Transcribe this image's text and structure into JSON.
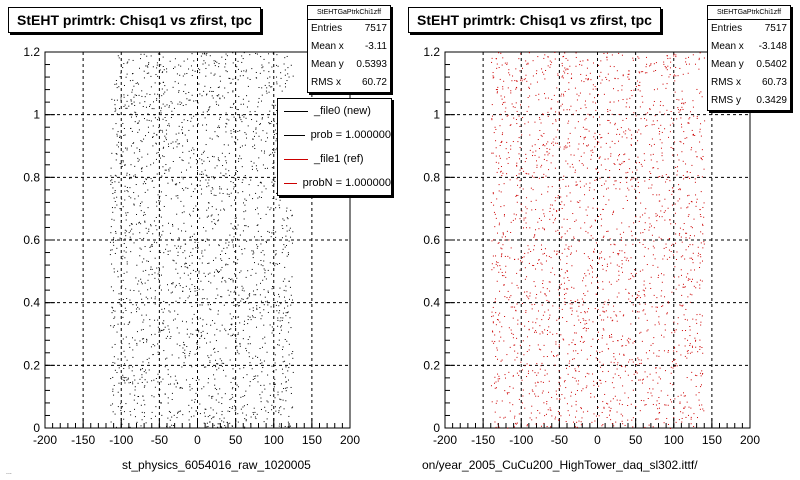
{
  "chart_data": [
    {
      "type": "scatter",
      "title": "StEHT primtrk: Chisq1  vs zfirst, tpc",
      "xlabel": "st_physics_6054016_raw_1020005",
      "ylabel": "",
      "xlim": [
        -200,
        200
      ],
      "ylim": [
        0,
        1.2
      ],
      "x_ticks": [
        "-200",
        "-150",
        "-100",
        "-50",
        "0",
        "50",
        "100",
        "150",
        "200"
      ],
      "y_ticks": [
        "0",
        "0.2",
        "0.4",
        "0.6",
        "0.8",
        "1",
        "1.2"
      ],
      "grid": true,
      "marker_color": "#000000",
      "x_range_of_points": [
        -115,
        125
      ],
      "stats": {
        "name": "StEHTGaPtrkChi1zff",
        "rows": [
          {
            "label": "Entries",
            "value": "7517"
          },
          {
            "label": "Mean x",
            "value": "-3.11"
          },
          {
            "label": "Mean y",
            "value": "0.5393"
          },
          {
            "label": "RMS x",
            "value": "60.72"
          }
        ]
      },
      "legend": [
        {
          "label": "_file0 (new)",
          "color": "#000000"
        },
        {
          "label": "prob = 1.000000",
          "color": "#000000"
        },
        {
          "label": "_file1 (ref)",
          "color": "#cc0000"
        },
        {
          "label": "probN = 1.000000",
          "color": "#cc0000"
        }
      ],
      "footer_text": "..."
    },
    {
      "type": "scatter",
      "title": "StEHT primtrk: Chisq1  vs zfirst, tpc",
      "xlabel": "on/year_2005_CuCu200_HighTower_daq_sl302.ittf/",
      "ylabel": "",
      "xlim": [
        -200,
        200
      ],
      "ylim": [
        0,
        1.2
      ],
      "x_ticks": [
        "-200",
        "-150",
        "-100",
        "-50",
        "0",
        "50",
        "100",
        "150",
        "200"
      ],
      "y_ticks": [
        "0",
        "0.2",
        "0.4",
        "0.6",
        "0.8",
        "1",
        "1.2"
      ],
      "grid": true,
      "marker_color": "#cc0000",
      "x_range_of_points": [
        -140,
        140
      ],
      "stats": {
        "name": "StEHTGaPtrkChi1zff",
        "rows": [
          {
            "label": "Entries",
            "value": "7517"
          },
          {
            "label": "Mean x",
            "value": "-3.148"
          },
          {
            "label": "Mean y",
            "value": "0.5402"
          },
          {
            "label": "RMS x",
            "value": "60.73"
          },
          {
            "label": "RMS y",
            "value": "0.3429"
          }
        ]
      }
    }
  ]
}
